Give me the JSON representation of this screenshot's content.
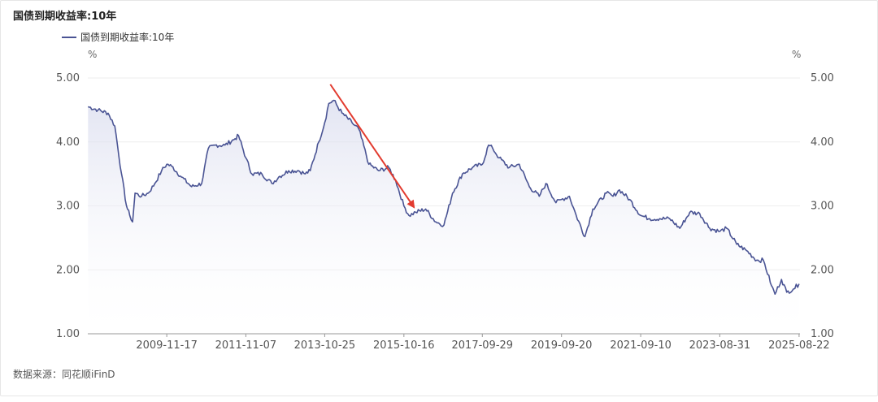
{
  "title": "国债到期收益率:10年",
  "source": "数据来源：同花顺iFinD",
  "colors": {
    "line": "#4a5494",
    "grid": "#eeeeee",
    "axis": "#999999",
    "arrow": "#e23b2f",
    "area_top": "#d9dcee"
  },
  "chart_data": {
    "type": "line",
    "title": "国债到期收益率:10年",
    "ylabel_left": "%",
    "ylabel_right": "%",
    "ylim": [
      1.0,
      5.0
    ],
    "yticks": [
      "1.00",
      "2.00",
      "3.00",
      "4.00",
      "5.00"
    ],
    "xticks": [
      "2009-11-17",
      "2011-11-07",
      "2013-10-25",
      "2015-10-16",
      "2017-09-29",
      "2019-09-20",
      "2021-09-10",
      "2023-08-31",
      "2025-08-22"
    ],
    "grid": true,
    "legend": "top-left",
    "series": [
      {
        "name": "国债到期收益率:10年",
        "points": [
          [
            "2007-12-01",
            4.55
          ],
          [
            "2008-03-01",
            4.5
          ],
          [
            "2008-06-01",
            4.45
          ],
          [
            "2008-08-01",
            4.25
          ],
          [
            "2008-10-01",
            3.5
          ],
          [
            "2008-11-15",
            3.0
          ],
          [
            "2008-12-15",
            2.85
          ],
          [
            "2009-01-10",
            2.75
          ],
          [
            "2009-02-01",
            3.2
          ],
          [
            "2009-04-01",
            3.15
          ],
          [
            "2009-06-01",
            3.2
          ],
          [
            "2009-08-01",
            3.35
          ],
          [
            "2009-10-01",
            3.55
          ],
          [
            "2009-11-17",
            3.65
          ],
          [
            "2010-01-01",
            3.62
          ],
          [
            "2010-04-01",
            3.45
          ],
          [
            "2010-07-01",
            3.3
          ],
          [
            "2010-10-01",
            3.35
          ],
          [
            "2010-12-01",
            3.9
          ],
          [
            "2011-02-01",
            3.95
          ],
          [
            "2011-05-01",
            3.95
          ],
          [
            "2011-08-01",
            4.05
          ],
          [
            "2011-09-01",
            4.1
          ],
          [
            "2011-11-07",
            3.75
          ],
          [
            "2012-01-01",
            3.5
          ],
          [
            "2012-04-01",
            3.5
          ],
          [
            "2012-07-01",
            3.35
          ],
          [
            "2012-09-01",
            3.45
          ],
          [
            "2012-12-01",
            3.55
          ],
          [
            "2013-03-01",
            3.55
          ],
          [
            "2013-05-01",
            3.5
          ],
          [
            "2013-06-15",
            3.55
          ],
          [
            "2013-09-01",
            4.0
          ],
          [
            "2013-10-25",
            4.3
          ],
          [
            "2013-12-01",
            4.6
          ],
          [
            "2014-01-15",
            4.65
          ],
          [
            "2014-04-01",
            4.45
          ],
          [
            "2014-07-01",
            4.3
          ],
          [
            "2014-09-01",
            4.2
          ],
          [
            "2014-12-01",
            3.65
          ],
          [
            "2015-03-01",
            3.55
          ],
          [
            "2015-06-01",
            3.6
          ],
          [
            "2015-08-01",
            3.4
          ],
          [
            "2015-10-16",
            3.0
          ],
          [
            "2015-12-01",
            2.85
          ],
          [
            "2016-02-01",
            2.9
          ],
          [
            "2016-05-01",
            2.95
          ],
          [
            "2016-08-01",
            2.75
          ],
          [
            "2016-10-15",
            2.7
          ],
          [
            "2017-01-01",
            3.2
          ],
          [
            "2017-04-01",
            3.5
          ],
          [
            "2017-07-01",
            3.6
          ],
          [
            "2017-09-29",
            3.65
          ],
          [
            "2017-11-25",
            3.95
          ],
          [
            "2018-01-01",
            3.9
          ],
          [
            "2018-03-01",
            3.75
          ],
          [
            "2018-06-01",
            3.6
          ],
          [
            "2018-09-01",
            3.65
          ],
          [
            "2018-12-01",
            3.3
          ],
          [
            "2019-03-01",
            3.15
          ],
          [
            "2019-05-01",
            3.35
          ],
          [
            "2019-08-01",
            3.05
          ],
          [
            "2019-09-20",
            3.1
          ],
          [
            "2019-12-01",
            3.15
          ],
          [
            "2020-02-01",
            2.85
          ],
          [
            "2020-04-20",
            2.52
          ],
          [
            "2020-07-01",
            2.95
          ],
          [
            "2020-11-01",
            3.2
          ],
          [
            "2021-01-01",
            3.15
          ],
          [
            "2021-03-01",
            3.25
          ],
          [
            "2021-06-01",
            3.1
          ],
          [
            "2021-09-10",
            2.85
          ],
          [
            "2021-12-01",
            2.8
          ],
          [
            "2022-03-01",
            2.8
          ],
          [
            "2022-06-01",
            2.8
          ],
          [
            "2022-09-01",
            2.65
          ],
          [
            "2022-12-01",
            2.9
          ],
          [
            "2023-03-01",
            2.88
          ],
          [
            "2023-06-01",
            2.65
          ],
          [
            "2023-08-31",
            2.6
          ],
          [
            "2023-11-01",
            2.65
          ],
          [
            "2024-02-01",
            2.4
          ],
          [
            "2024-05-01",
            2.3
          ],
          [
            "2024-08-01",
            2.15
          ],
          [
            "2024-10-01",
            2.15
          ],
          [
            "2024-12-15",
            1.75
          ],
          [
            "2025-01-15",
            1.62
          ],
          [
            "2025-03-15",
            1.85
          ],
          [
            "2025-05-01",
            1.65
          ],
          [
            "2025-07-01",
            1.7
          ],
          [
            "2025-08-22",
            1.78
          ]
        ]
      }
    ],
    "annotation": {
      "type": "arrow",
      "from": [
        "2013-12-15",
        4.9
      ],
      "to": [
        "2016-01-15",
        2.98
      ]
    }
  }
}
